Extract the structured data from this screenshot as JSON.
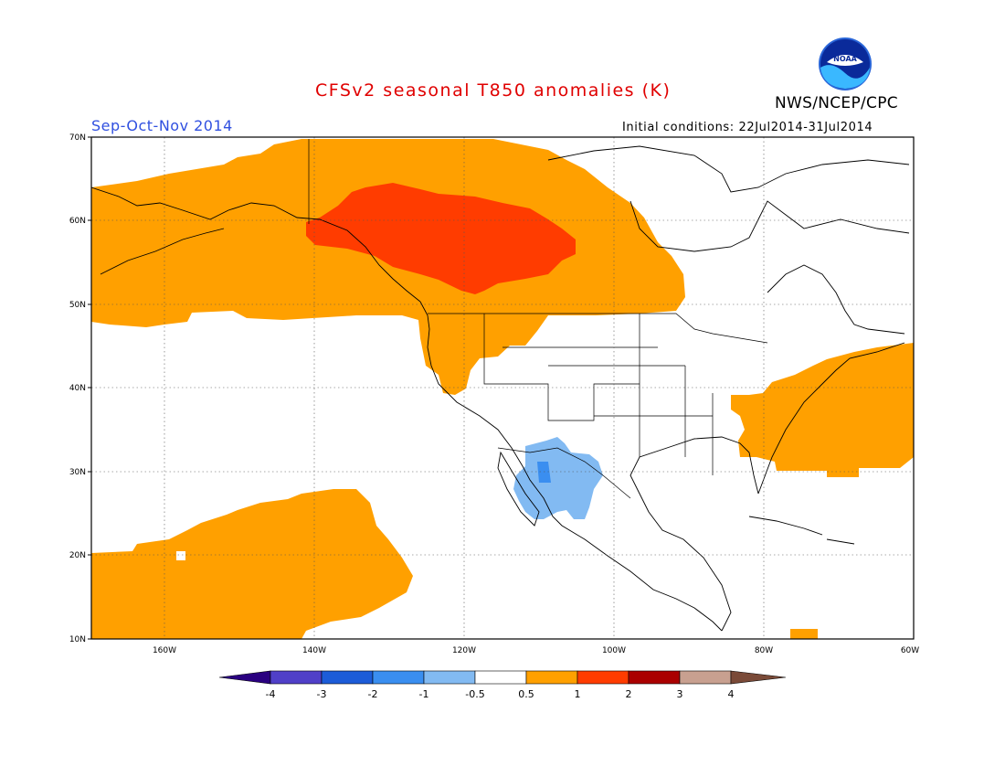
{
  "header": {
    "title": "CFSv2 seasonal T850 anomalies (K)",
    "season": "Sep-Oct-Nov 2014",
    "initial_conditions": "Initial conditions: 22Jul2014-31Jul2014",
    "agency": "NWS/NCEP/CPC",
    "logo_text": "NOAA"
  },
  "map": {
    "lat_labels": [
      "70N",
      "60N",
      "50N",
      "40N",
      "30N",
      "20N",
      "10N"
    ],
    "lon_labels": [
      "160W",
      "140W",
      "120W",
      "100W",
      "80W",
      "60W"
    ],
    "regions": [
      {
        "name": "warm-north-pacific-canada-anomaly",
        "category": "0.5 to 1"
      },
      {
        "name": "hot-western-canada-anomaly",
        "category": "1 to 2"
      },
      {
        "name": "warm-us-east-coast-anomaly",
        "category": "0.5 to 1"
      },
      {
        "name": "warm-subtropical-pacific-anomaly",
        "category": "0.5 to 1"
      },
      {
        "name": "cool-mexico-anomaly",
        "category": "-1 to -0.5"
      },
      {
        "name": "cooler-mexico-core-anomaly",
        "category": "-2 to -1"
      }
    ]
  },
  "colorbar": {
    "labels": [
      "-4",
      "-3",
      "-2",
      "-1",
      "-0.5",
      "0.5",
      "1",
      "2",
      "3",
      "4"
    ],
    "colors": {
      "lt_neg4": "#2a0080",
      "neg4_neg3": "#5040c8",
      "neg3_neg2": "#1c5cd8",
      "neg2_neg1": "#3a8ef0",
      "neg1_neg05": "#82baf2",
      "neutral": "#ffffff",
      "p05_1": "#ffa000",
      "p1_2": "#ff3c00",
      "p2_3": "#aa0000",
      "p3_4": "#c8a090",
      "gt4": "#7a4a38"
    }
  }
}
